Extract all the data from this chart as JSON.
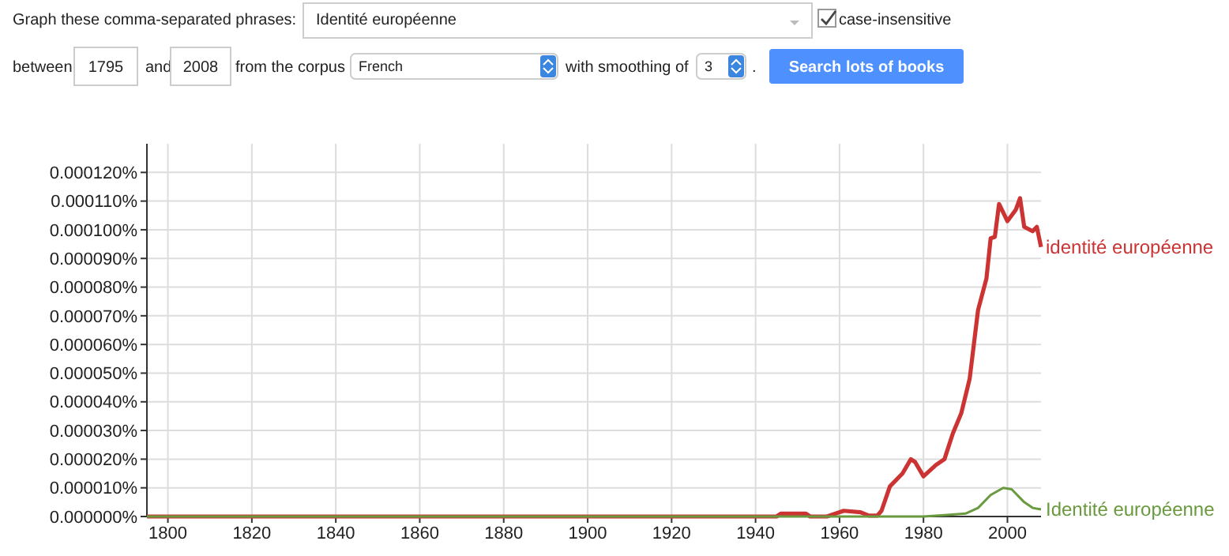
{
  "chart_data": {
    "type": "line",
    "x": [
      1795,
      1945,
      1946,
      1952,
      1953,
      1957,
      1961,
      1965,
      1967,
      1969,
      1970,
      1972,
      1975,
      1977,
      1978,
      1980,
      1983,
      1985,
      1987,
      1989,
      1991,
      1993,
      1995,
      1996,
      1997,
      1998,
      2000,
      2002,
      2003,
      2004,
      2006,
      2007,
      2008
    ],
    "series": [
      {
        "name": "identité européenne",
        "color": "#cc3333",
        "values": [
          0,
          0,
          1e-06,
          1e-06,
          0,
          0,
          2e-06,
          1.5e-06,
          3e-07,
          3e-07,
          2e-06,
          1.05e-05,
          1.5e-05,
          2e-05,
          1.9e-05,
          1.4e-05,
          1.8e-05,
          2e-05,
          2.9e-05,
          3.6e-05,
          4.8e-05,
          7.2e-05,
          8.3e-05,
          9.7e-05,
          9.75e-05,
          0.000109,
          0.000103,
          0.000107,
          0.000111,
          0.000101,
          9.95e-05,
          0.000101,
          9.4e-05
        ]
      },
      {
        "name": "Identité européenne",
        "color": "#6a9a3f",
        "x": [
          1795,
          1980,
          1985,
          1990,
          1993,
          1996,
          1999,
          2001,
          2004,
          2006,
          2008
        ],
        "values": [
          0,
          0,
          5e-07,
          1e-06,
          3e-06,
          7.5e-06,
          1e-05,
          9.5e-06,
          5e-06,
          3e-06,
          2.5e-06
        ]
      }
    ],
    "xlim": [
      1795,
      2008
    ],
    "xticks": [
      1800,
      1820,
      1840,
      1860,
      1880,
      1900,
      1920,
      1940,
      1960,
      1980,
      2000
    ],
    "ylim": [
      0,
      0.00013
    ],
    "yticks": [
      {
        "value": 0,
        "label": "0.000000%"
      },
      {
        "value": 1e-05,
        "label": "0.000010%"
      },
      {
        "value": 2e-05,
        "label": "0.000020%"
      },
      {
        "value": 3e-05,
        "label": "0.000030%"
      },
      {
        "value": 4e-05,
        "label": "0.000040%"
      },
      {
        "value": 5e-05,
        "label": "0.000050%"
      },
      {
        "value": 6e-05,
        "label": "0.000060%"
      },
      {
        "value": 7e-05,
        "label": "0.000070%"
      },
      {
        "value": 8e-05,
        "label": "0.000080%"
      },
      {
        "value": 9e-05,
        "label": "0.000090%"
      },
      {
        "value": 0.0001,
        "label": "0.000100%"
      },
      {
        "value": 0.00011,
        "label": "0.000110%"
      },
      {
        "value": 0.00012,
        "label": "0.000120%"
      }
    ],
    "grid": true,
    "annotations": [
      "Graph these comma-separated phrases:",
      "Identité européenne",
      "case-insensitive",
      "between",
      "1795",
      "and",
      "2008",
      "from the corpus",
      "French",
      "with smoothing of",
      "3",
      ".",
      "Search lots of books"
    ]
  }
}
